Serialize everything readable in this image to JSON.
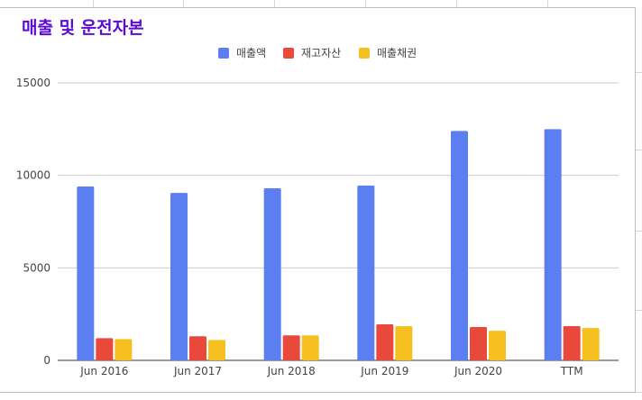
{
  "chart_data": {
    "type": "bar",
    "title": "매출 및 운전자본",
    "categories": [
      "Jun 2016",
      "Jun 2017",
      "Jun 2018",
      "Jun 2019",
      "Jun 2020",
      "TTM"
    ],
    "series": [
      {
        "name": "매출액",
        "color": "#5b7ff0",
        "values": [
          9400,
          9050,
          9300,
          9450,
          12400,
          12500
        ]
      },
      {
        "name": "재고자산",
        "color": "#e8493a",
        "values": [
          1200,
          1300,
          1350,
          1950,
          1800,
          1850
        ]
      },
      {
        "name": "매출채권",
        "color": "#f5c020",
        "values": [
          1150,
          1100,
          1350,
          1850,
          1600,
          1750
        ]
      }
    ],
    "ylim": [
      0,
      15000
    ],
    "yticks": [
      "0",
      "5000",
      "10000",
      "15000"
    ],
    "xlabel": "",
    "ylabel": "",
    "grid": true,
    "legend": "top-center"
  }
}
